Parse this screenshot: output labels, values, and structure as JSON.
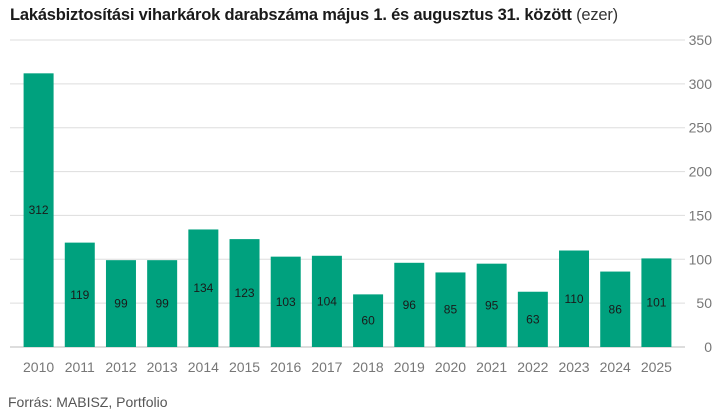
{
  "title": {
    "main": "Lakásbiztosítási viharkárok darabszáma május 1. és augusztus 31. között",
    "unit": "(ezer)"
  },
  "source": "Forrás: MABISZ, Portfolio",
  "colors": {
    "bar": "#00a17e",
    "grid": "#dddddd",
    "axis": "#bbbbbb"
  },
  "chart_data": {
    "type": "bar",
    "categories": [
      "2010",
      "2011",
      "2012",
      "2013",
      "2014",
      "2015",
      "2016",
      "2017",
      "2018",
      "2019",
      "2020",
      "2021",
      "2022",
      "2023",
      "2024",
      "2025"
    ],
    "values": [
      312,
      119,
      99,
      99,
      134,
      123,
      103,
      104,
      60,
      96,
      85,
      95,
      63,
      110,
      86,
      101
    ],
    "data_labels": [
      "312",
      "119",
      "99",
      "99",
      "134",
      "123",
      "103",
      "104",
      "60",
      "96",
      "85",
      "95",
      "63",
      "110",
      "86",
      "101"
    ],
    "ylim": [
      0,
      350
    ],
    "yticks": [
      0,
      50,
      100,
      150,
      200,
      250,
      300,
      350
    ],
    "ytick_labels": [
      "0",
      "50",
      "100",
      "150",
      "200",
      "250",
      "300",
      "350"
    ],
    "y_axis_side": "right",
    "grid": true,
    "legend": "none"
  }
}
